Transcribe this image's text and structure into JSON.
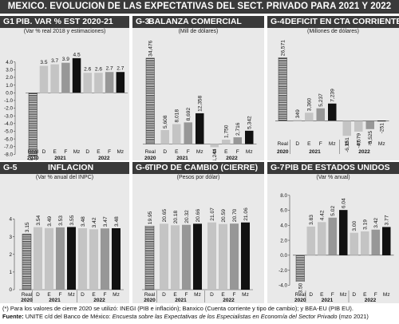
{
  "page": {
    "title": "MEXICO. EVOLUCION DE LAS EXPECTATIVAS DEL SECT. PRIVADO PARA 2021 Y 2022",
    "note_prefix": "(*)",
    "note_text": " Para los valores de cierre 2020 se utilizó: INEGI (PIB e inflación); Banxico (Cuenta corriente y tipo de cambio); y BEA-EU (PIB EU).",
    "source_label": "Fuente:",
    "source_text_plain": " UNITE c/d del Banco de México: ",
    "source_text_italic": "Encuesta sobre las Expectativas de los Especialistas en Economía del Sector Privado",
    "source_text_end": " (mzo 2021)"
  },
  "colors": {
    "header_bg": "#3a3a3a",
    "panel_bg": "#e9e9e9",
    "real_hatch": "#333333",
    "bar_light": "#c4c4c4",
    "bar_mid": "#979797",
    "bar_dark": "#6e6e6e",
    "bar_latest": "#111111"
  },
  "chart_data": [
    {
      "id": "g1",
      "type": "bar",
      "code": "G1",
      "title": "PIB. VAR % EST 2020-21",
      "subtitle": "(Var % real 2018 y estimaciones)",
      "categories": [
        "Real",
        "D",
        "E",
        "F",
        "Mz",
        "D",
        "E",
        "F",
        "Mz"
      ],
      "year_groups": [
        {
          "label": "2020",
          "span": 1
        },
        {
          "label": "2021",
          "span": 4
        },
        {
          "label": "2022",
          "span": 4
        }
      ],
      "values": [
        -8.2,
        3.5,
        3.7,
        3.9,
        4.5,
        2.6,
        2.6,
        2.7,
        2.7
      ],
      "labels": [
        "-8.2",
        "3.5",
        "3.7",
        "3.9",
        "4.5",
        "2.6",
        "2.6",
        "2.7",
        "2.7"
      ],
      "label_rotate": false,
      "ylim": [
        -9,
        4.8
      ],
      "yticks": [
        4.0,
        3.0,
        2.0,
        1.0,
        0.0,
        -1.0,
        -2.0,
        -3.0,
        -4.0,
        -5.0,
        -6.0,
        -7.0,
        -8.0
      ],
      "ytick_labels": [
        "4.0",
        "3.0",
        "2.0",
        "1.0",
        "0.0",
        "-1.0",
        "-2.0",
        "-3.0",
        "-4.0",
        "-5.0",
        "-6.0",
        "-7.0",
        "-8.0"
      ],
      "show_cat_labels": false,
      "show_year_labels": false,
      "grid": false,
      "legend": "none"
    },
    {
      "id": "g3",
      "type": "bar",
      "code": "G-3",
      "title": "BALANZA COMERCIAL",
      "subtitle": "(Mill de dólares)",
      "categories": [
        "Real",
        "D",
        "E",
        "F",
        "Mz",
        "D",
        "E",
        "F",
        "Mz"
      ],
      "year_groups": [
        {
          "label": "2020",
          "span": 1
        },
        {
          "label": "2021",
          "span": 4
        },
        {
          "label": "2022",
          "span": 4
        }
      ],
      "values": [
        34476,
        5608,
        8018,
        8692,
        12358,
        -1244,
        1750,
        2716,
        5342
      ],
      "labels": [
        "34,476",
        "5,608",
        "8,018",
        "8,692",
        "12,358",
        "-1,244",
        "1,750",
        "2,716",
        "5,342"
      ],
      "label_rotate": true,
      "ylim": [
        -4000,
        37000
      ],
      "yticks": [],
      "ytick_labels": [],
      "show_cat_labels": false,
      "show_year_labels": false,
      "grid": false,
      "legend": "none"
    },
    {
      "id": "g4",
      "type": "bar",
      "code": "G-4",
      "title": "DEFICIT EN CTA CORRIENTE",
      "subtitle": "(Millones de dólares)",
      "categories": [
        "Real",
        "D",
        "E",
        "F",
        "Mz",
        "D",
        "E",
        "F",
        "Mz"
      ],
      "year_groups": [
        {
          "label": "2020",
          "span": 1
        },
        {
          "label": "2021",
          "span": 4
        },
        {
          "label": "2022",
          "span": 4
        }
      ],
      "values": [
        26571,
        349,
        3360,
        5237,
        7239,
        -6351,
        -4579,
        -3525,
        -251
      ],
      "labels": [
        "26,571",
        "349",
        "3,360",
        "5,237",
        "7,239",
        "-6,351",
        "-4,579",
        "-3,525",
        "-251"
      ],
      "label_rotate": true,
      "ylim": [
        -13000,
        29000
      ],
      "yticks": [],
      "ytick_labels": [],
      "show_cat_labels": true,
      "show_year_labels": true,
      "grid": false,
      "legend": "none"
    },
    {
      "id": "g5",
      "type": "bar",
      "code": "G-5",
      "title": "INFLACION",
      "subtitle": "(Var % anual del INPC)",
      "categories": [
        "Real",
        "D",
        "E",
        "F",
        "Mz",
        "D",
        "E",
        "F",
        "Mz"
      ],
      "year_groups": [
        {
          "label": "2020",
          "span": 1
        },
        {
          "label": "2021",
          "span": 4
        },
        {
          "label": "2022",
          "span": 4
        }
      ],
      "values": [
        3.15,
        3.54,
        3.49,
        3.53,
        3.55,
        3.48,
        3.42,
        3.47,
        3.48
      ],
      "labels": [
        "3.15",
        "3.54",
        "3.49",
        "3.53",
        "3.55",
        "3.48",
        "3.42",
        "3.47",
        "3.48"
      ],
      "label_rotate": true,
      "ylim": [
        0,
        4.7
      ],
      "yticks": [
        4,
        3,
        2,
        1,
        0
      ],
      "ytick_labels": [
        "4",
        "3",
        "2",
        "1",
        "0"
      ],
      "show_cat_labels": true,
      "show_year_labels": true,
      "grid": false,
      "legend": "none"
    },
    {
      "id": "g6",
      "type": "bar",
      "code": "G-6",
      "title": "TIPO DE CAMBIO (CIERRE)",
      "subtitle": "(Pesos por dólar)",
      "categories": [
        "Real",
        "D",
        "E",
        "F",
        "Mz",
        "D",
        "E",
        "F",
        "Mz"
      ],
      "year_groups": [
        {
          "label": "2020",
          "span": 1
        },
        {
          "label": "2021",
          "span": 4
        },
        {
          "label": "2022",
          "span": 4
        }
      ],
      "values": [
        19.95,
        20.65,
        20.18,
        20.32,
        20.66,
        21.07,
        20.59,
        20.7,
        21.06
      ],
      "labels": [
        "19.95",
        "20.65",
        "20.18",
        "20.32",
        "20.66",
        "21.07",
        "20.59",
        "20.70",
        "21.06"
      ],
      "label_rotate": true,
      "ylim": [
        0,
        27
      ],
      "yticks": [],
      "ytick_labels": [],
      "show_cat_labels": true,
      "show_year_labels": true,
      "grid": false,
      "legend": "none"
    },
    {
      "id": "g7",
      "type": "bar",
      "code": "G-7",
      "title": "PIB DE ESTADOS UNIDOS",
      "subtitle": "(Var % anual)",
      "categories": [
        "Real",
        "D",
        "E",
        "F",
        "Mz",
        "D",
        "E",
        "F",
        "Mz"
      ],
      "year_groups": [
        {
          "label": "2020",
          "span": 1
        },
        {
          "label": "2021",
          "span": 4
        },
        {
          "label": "2022",
          "span": 4
        }
      ],
      "values": [
        -3.5,
        3.83,
        4.42,
        5.02,
        6.04,
        3.0,
        3.19,
        3.42,
        3.77
      ],
      "labels": [
        "-3.50",
        "3.83",
        "4.42",
        "5.02",
        "6.04",
        "3.00",
        "3.19",
        "3.42",
        "3.77"
      ],
      "label_rotate": true,
      "ylim": [
        -4.6,
        8.4
      ],
      "yticks": [
        8.0,
        6.0,
        4.0,
        2.0,
        0.0,
        -2.0,
        -4.0
      ],
      "ytick_labels": [
        "8.0",
        "6.0",
        "4.0",
        "2.0",
        "0.0",
        "-2.0",
        "-4.0"
      ],
      "show_cat_labels": true,
      "show_year_labels": true,
      "grid": false,
      "legend": "none"
    }
  ]
}
